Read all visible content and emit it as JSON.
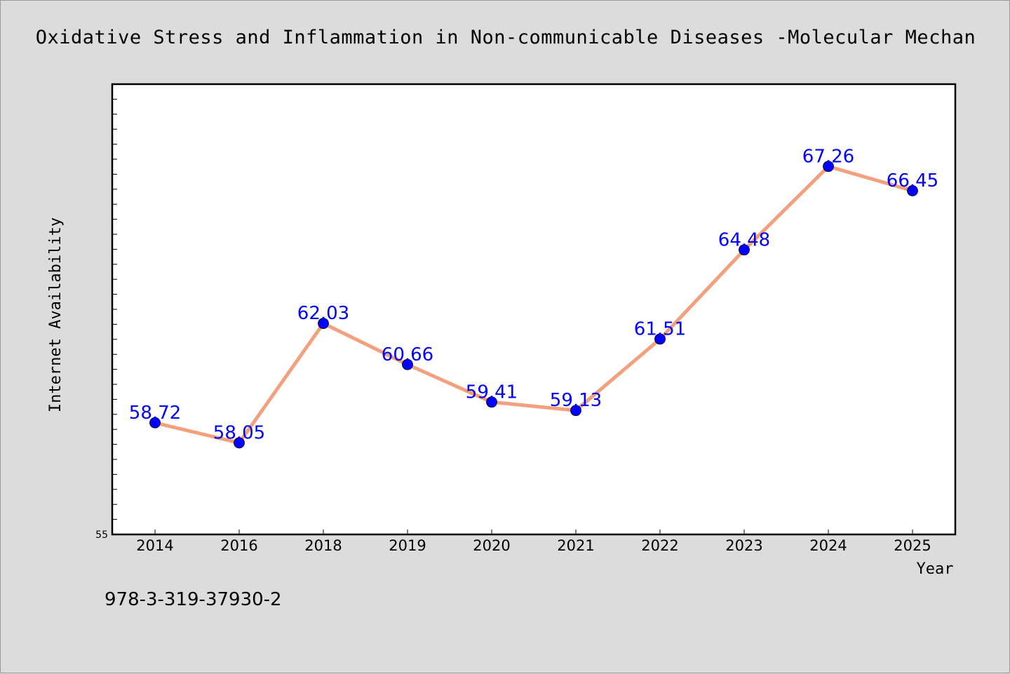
{
  "chart_data": {
    "type": "line",
    "title": "Oxidative Stress and Inflammation in Non-communicable Diseases -Molecular Mechan",
    "xlabel": "Year",
    "ylabel": "Internet Availability",
    "categories": [
      "2014",
      "2016",
      "2018",
      "2019",
      "2020",
      "2021",
      "2022",
      "2023",
      "2024",
      "2025"
    ],
    "series": [
      {
        "values": [
          58.72,
          58.05,
          62.03,
          60.66,
          59.41,
          59.13,
          61.51,
          64.48,
          67.26,
          66.45
        ],
        "value_labels": [
          "58.72",
          "58.05",
          "62.03",
          "60.66",
          "59.41",
          "59.13",
          "61.51",
          "64.48",
          "67.26",
          "66.45"
        ]
      }
    ],
    "ylim": [
      55,
      70
    ],
    "yticks": [
      55
    ],
    "ytick_labels": [
      "55"
    ],
    "grid": false,
    "colors": {
      "line": "#f4a07e",
      "marker": "#0000ff",
      "label": "#0000ff"
    }
  },
  "footer": {
    "text": "978-3-319-37930-2"
  }
}
